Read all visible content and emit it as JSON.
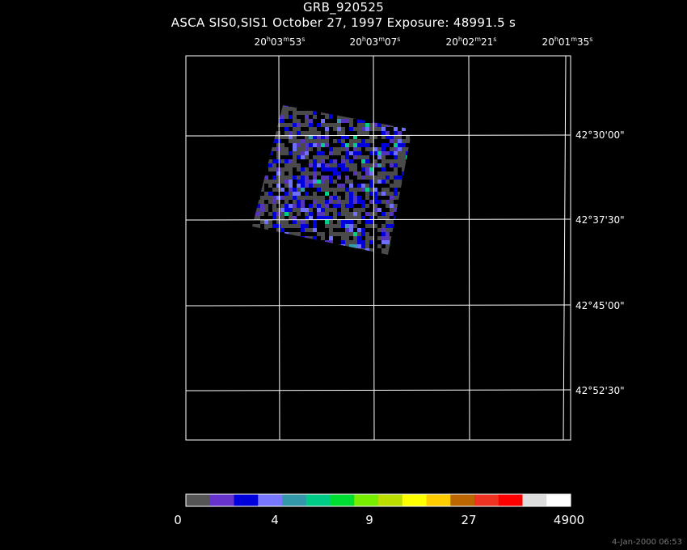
{
  "header": {
    "title": "GRB_920525",
    "subtitle": "ASCA SIS0,SIS1 October 27, 1997 Exposure: 48991.5 s"
  },
  "ra_labels": [
    {
      "h": "20",
      "m": "03",
      "s": "53"
    },
    {
      "h": "20",
      "m": "03",
      "s": "07"
    },
    {
      "h": "20",
      "m": "02",
      "s": "21"
    },
    {
      "h": "20",
      "m": "01",
      "s": "35"
    }
  ],
  "dec_labels": [
    "42°30'00\"",
    "42°37'30\"",
    "42°45'00\"",
    "42°52'30\""
  ],
  "colorbar": {
    "colors": [
      "#555555",
      "#6633cc",
      "#0000dd",
      "#7777ff",
      "#3399aa",
      "#00cc88",
      "#00dd33",
      "#77ee00",
      "#bbdd00",
      "#ffff00",
      "#ffcc00",
      "#bb6600",
      "#ee3322",
      "#ff0000",
      "#dddddd",
      "#ffffff"
    ],
    "ticks": [
      "0",
      "4",
      "9",
      "27",
      "4900"
    ]
  },
  "footer": "4-Jan-2000 06:53"
}
